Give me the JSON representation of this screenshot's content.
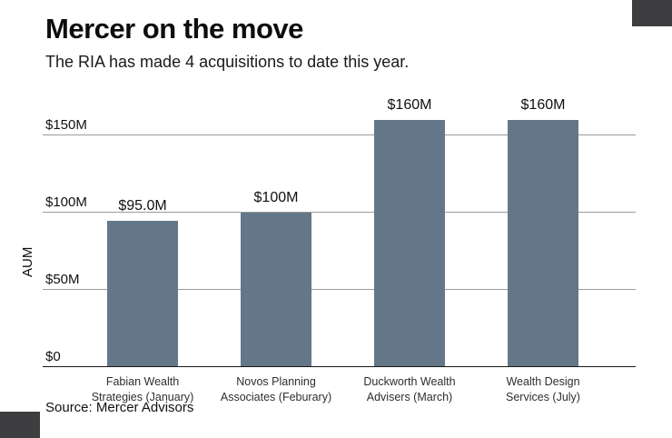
{
  "chart_data": {
    "type": "bar",
    "title": "Mercer on the move",
    "subtitle": "The RIA has made 4 acquisitions to date this year.",
    "ylabel": "AUM",
    "xlabel": "",
    "source": "Source: Mercer Advisors",
    "categories": [
      [
        "Fabian Wealth",
        "Strategies (January)"
      ],
      [
        "Novos Planning",
        "Associates (Feburary)"
      ],
      [
        "Duckworth Wealth",
        "Advisers (March)"
      ],
      [
        "Wealth Design",
        "Services (July)"
      ]
    ],
    "values": [
      95,
      100,
      160,
      160
    ],
    "value_labels": [
      "$95.0M",
      "$100M",
      "$160M",
      "$160M"
    ],
    "yticks": [
      {
        "value": 0,
        "label": "$0"
      },
      {
        "value": 50,
        "label": "$50M"
      },
      {
        "value": 100,
        "label": "$100M"
      },
      {
        "value": 150,
        "label": "$150M"
      }
    ],
    "ylim": [
      0,
      160
    ],
    "grid": true,
    "legend": false,
    "colors": {
      "bar": "#647789",
      "gridline": "#9b9b9b",
      "baseline": "#1a1a1a",
      "corner_accent": "#3e3e40",
      "text": "#111111"
    }
  }
}
